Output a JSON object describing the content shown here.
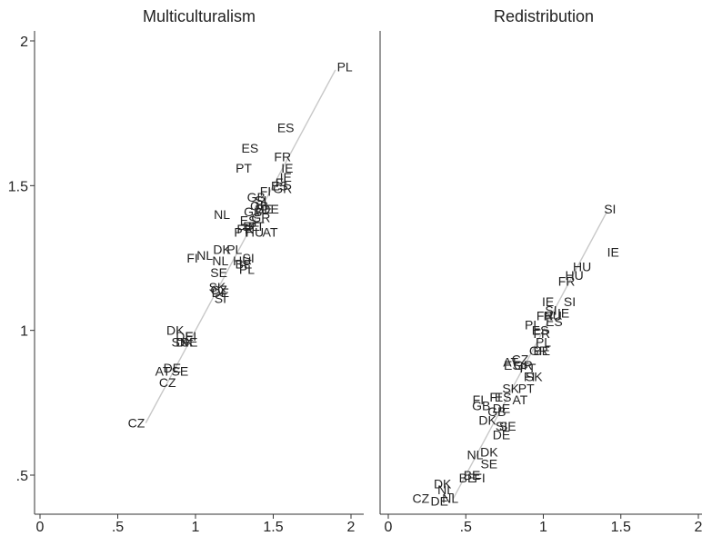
{
  "chart_data": [
    {
      "type": "scatter",
      "title": "Multiculturalism",
      "xlim": [
        -0.05,
        2.05
      ],
      "ylim": [
        0.37,
        2.05
      ],
      "x_ticks": [
        {
          "value": 0,
          "label": "0"
        },
        {
          "value": 0.5,
          "label": ".5"
        },
        {
          "value": 1,
          "label": "1"
        },
        {
          "value": 1.5,
          "label": "1.5"
        },
        {
          "value": 2,
          "label": "2"
        }
      ],
      "y_ticks": [
        {
          "value": 0.5,
          "label": ".5"
        },
        {
          "value": 1,
          "label": "1"
        },
        {
          "value": 1.5,
          "label": "1.5"
        },
        {
          "value": 2,
          "label": "2"
        }
      ],
      "grid": false,
      "fit_line": {
        "x": [
          0.68,
          1.9
        ],
        "y": [
          0.68,
          1.9
        ],
        "color": "#c8c8c8"
      },
      "points": [
        {
          "label": "PL",
          "x": 1.96,
          "y": 1.91
        },
        {
          "label": "ES",
          "x": 1.58,
          "y": 1.7
        },
        {
          "label": "ES",
          "x": 1.35,
          "y": 1.63
        },
        {
          "label": "FR",
          "x": 1.56,
          "y": 1.6
        },
        {
          "label": "PT",
          "x": 1.31,
          "y": 1.56
        },
        {
          "label": "IE",
          "x": 1.59,
          "y": 1.56
        },
        {
          "label": "IE",
          "x": 1.58,
          "y": 1.53
        },
        {
          "label": "FI",
          "x": 1.55,
          "y": 1.51
        },
        {
          "label": "ES",
          "x": 1.54,
          "y": 1.5
        },
        {
          "label": "GR",
          "x": 1.56,
          "y": 1.49
        },
        {
          "label": "FI",
          "x": 1.45,
          "y": 1.48
        },
        {
          "label": "GB",
          "x": 1.39,
          "y": 1.46
        },
        {
          "label": "SI",
          "x": 1.42,
          "y": 1.45
        },
        {
          "label": "GB",
          "x": 1.41,
          "y": 1.43
        },
        {
          "label": "BE",
          "x": 1.44,
          "y": 1.42
        },
        {
          "label": "DE",
          "x": 1.48,
          "y": 1.42
        },
        {
          "label": "NL",
          "x": 1.17,
          "y": 1.4
        },
        {
          "label": "GB",
          "x": 1.37,
          "y": 1.41
        },
        {
          "label": "GR",
          "x": 1.42,
          "y": 1.39
        },
        {
          "label": "ES",
          "x": 1.34,
          "y": 1.38
        },
        {
          "label": "PT",
          "x": 1.39,
          "y": 1.36
        },
        {
          "label": "BE",
          "x": 1.36,
          "y": 1.36
        },
        {
          "label": "FR",
          "x": 1.32,
          "y": 1.35
        },
        {
          "label": "PT",
          "x": 1.3,
          "y": 1.34
        },
        {
          "label": "HU",
          "x": 1.38,
          "y": 1.34
        },
        {
          "label": "AT",
          "x": 1.48,
          "y": 1.34
        },
        {
          "label": "DK",
          "x": 1.17,
          "y": 1.28
        },
        {
          "label": "PL",
          "x": 1.25,
          "y": 1.28
        },
        {
          "label": "NL",
          "x": 1.06,
          "y": 1.26
        },
        {
          "label": "FI",
          "x": 0.98,
          "y": 1.25
        },
        {
          "label": "NL",
          "x": 1.16,
          "y": 1.24
        },
        {
          "label": "HU",
          "x": 1.3,
          "y": 1.24
        },
        {
          "label": "SI",
          "x": 1.34,
          "y": 1.25
        },
        {
          "label": "BE",
          "x": 1.31,
          "y": 1.23
        },
        {
          "label": "PL",
          "x": 1.33,
          "y": 1.21
        },
        {
          "label": "SE",
          "x": 1.15,
          "y": 1.2
        },
        {
          "label": "SK",
          "x": 1.14,
          "y": 1.15
        },
        {
          "label": "CZ",
          "x": 1.15,
          "y": 1.14
        },
        {
          "label": "DE",
          "x": 1.16,
          "y": 1.13
        },
        {
          "label": "SI",
          "x": 1.16,
          "y": 1.11
        },
        {
          "label": "DK",
          "x": 0.87,
          "y": 1.0
        },
        {
          "label": "DE",
          "x": 0.93,
          "y": 0.98
        },
        {
          "label": "FI",
          "x": 0.97,
          "y": 0.98
        },
        {
          "label": "SK",
          "x": 0.9,
          "y": 0.96
        },
        {
          "label": "SE",
          "x": 0.96,
          "y": 0.96
        },
        {
          "label": "DK",
          "x": 0.93,
          "y": 0.96
        },
        {
          "label": "DE",
          "x": 0.85,
          "y": 0.87
        },
        {
          "label": "AT",
          "x": 0.79,
          "y": 0.86
        },
        {
          "label": "SE",
          "x": 0.9,
          "y": 0.86
        },
        {
          "label": "CZ",
          "x": 0.82,
          "y": 0.82
        },
        {
          "label": "CZ",
          "x": 0.62,
          "y": 0.68
        }
      ]
    },
    {
      "type": "scatter",
      "title": "Redistribution",
      "xlim": [
        -0.05,
        2.05
      ],
      "ylim": [
        0.37,
        2.05
      ],
      "x_ticks": [
        {
          "value": 0,
          "label": "0"
        },
        {
          "value": 0.5,
          "label": ".5"
        },
        {
          "value": 1,
          "label": "1"
        },
        {
          "value": 1.5,
          "label": "1.5"
        },
        {
          "value": 2,
          "label": "2"
        }
      ],
      "grid": false,
      "fit_line": {
        "x": [
          0.42,
          1.41
        ],
        "y": [
          0.42,
          1.41
        ],
        "color": "#c8c8c8"
      },
      "points": [
        {
          "label": "SI",
          "x": 1.43,
          "y": 1.42
        },
        {
          "label": "IE",
          "x": 1.45,
          "y": 1.27
        },
        {
          "label": "HU",
          "x": 1.25,
          "y": 1.22
        },
        {
          "label": "HU",
          "x": 1.2,
          "y": 1.19
        },
        {
          "label": "FR",
          "x": 1.15,
          "y": 1.17
        },
        {
          "label": "IE",
          "x": 1.03,
          "y": 1.1
        },
        {
          "label": "SI",
          "x": 1.17,
          "y": 1.1
        },
        {
          "label": "SI",
          "x": 1.05,
          "y": 1.07
        },
        {
          "label": "IE",
          "x": 1.13,
          "y": 1.06
        },
        {
          "label": "FR",
          "x": 1.01,
          "y": 1.05
        },
        {
          "label": "HU",
          "x": 1.06,
          "y": 1.05
        },
        {
          "label": "ES",
          "x": 1.07,
          "y": 1.03
        },
        {
          "label": "PL",
          "x": 0.93,
          "y": 1.02
        },
        {
          "label": "ES",
          "x": 0.98,
          "y": 1.0
        },
        {
          "label": "FR",
          "x": 0.99,
          "y": 0.99
        },
        {
          "label": "PL",
          "x": 1.0,
          "y": 0.96
        },
        {
          "label": "GR",
          "x": 0.97,
          "y": 0.93
        },
        {
          "label": "BE",
          "x": 0.99,
          "y": 0.93
        },
        {
          "label": "AT",
          "x": 0.79,
          "y": 0.89
        },
        {
          "label": "CZ",
          "x": 0.85,
          "y": 0.9
        },
        {
          "label": "ES",
          "x": 0.8,
          "y": 0.88
        },
        {
          "label": "GR",
          "x": 0.87,
          "y": 0.88
        },
        {
          "label": "PT",
          "x": 0.9,
          "y": 0.87
        },
        {
          "label": "FI",
          "x": 0.91,
          "y": 0.84
        },
        {
          "label": "SK",
          "x": 0.94,
          "y": 0.84
        },
        {
          "label": "SK",
          "x": 0.79,
          "y": 0.8
        },
        {
          "label": "PT",
          "x": 0.89,
          "y": 0.8
        },
        {
          "label": "FI",
          "x": 0.69,
          "y": 0.77
        },
        {
          "label": "ES",
          "x": 0.74,
          "y": 0.77
        },
        {
          "label": "AT",
          "x": 0.85,
          "y": 0.76
        },
        {
          "label": "FI",
          "x": 0.58,
          "y": 0.76
        },
        {
          "label": "GB",
          "x": 0.6,
          "y": 0.74
        },
        {
          "label": "DE",
          "x": 0.73,
          "y": 0.73
        },
        {
          "label": "GB",
          "x": 0.7,
          "y": 0.72
        },
        {
          "label": "DK",
          "x": 0.64,
          "y": 0.69
        },
        {
          "label": "SI",
          "x": 0.73,
          "y": 0.67
        },
        {
          "label": "SE",
          "x": 0.77,
          "y": 0.67
        },
        {
          "label": "DE",
          "x": 0.73,
          "y": 0.64
        },
        {
          "label": "NL",
          "x": 0.56,
          "y": 0.57
        },
        {
          "label": "DK",
          "x": 0.65,
          "y": 0.58
        },
        {
          "label": "SE",
          "x": 0.65,
          "y": 0.54
        },
        {
          "label": "BE",
          "x": 0.54,
          "y": 0.5
        },
        {
          "label": "BE",
          "x": 0.51,
          "y": 0.49
        },
        {
          "label": "FI",
          "x": 0.59,
          "y": 0.49
        },
        {
          "label": "DK",
          "x": 0.35,
          "y": 0.47
        },
        {
          "label": "NL",
          "x": 0.37,
          "y": 0.45
        },
        {
          "label": "CZ",
          "x": 0.21,
          "y": 0.42
        },
        {
          "label": "DE",
          "x": 0.33,
          "y": 0.41
        },
        {
          "label": "NL",
          "x": 0.4,
          "y": 0.42
        }
      ]
    }
  ]
}
